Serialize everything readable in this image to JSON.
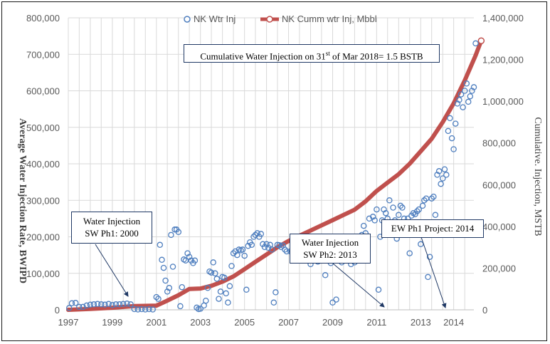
{
  "chart_data": {
    "type": "scatter",
    "legend": {
      "placement": "top",
      "entries": [
        {
          "label": "NK Wtr Inj",
          "marker": "circle-open",
          "color": "#4f7fbf"
        },
        {
          "label": "NK Cumm wtr Inj, Mbbl",
          "marker": "line-circle",
          "color": "#c0504d"
        }
      ]
    },
    "x_axis": {
      "type": "date",
      "range": [
        "1997-01-01",
        "2015-06-01"
      ],
      "tick_labels": [
        "1997",
        "1999",
        "2001",
        "2003",
        "2005",
        "2007",
        "2009",
        "2011",
        "2013",
        "2014"
      ],
      "tick_dates": [
        "1997-01-01",
        "1999-01-01",
        "2001-01-01",
        "2003-01-01",
        "2005-01-01",
        "2007-01-01",
        "2009-01-01",
        "2011-01-01",
        "2013-01-01",
        "2014-07-01"
      ]
    },
    "y_left": {
      "label": "Average Water Injection Rate, BWIPD",
      "range": [
        0,
        800000
      ],
      "tick_labels": [
        "0",
        "100,000",
        "200,000",
        "300,000",
        "400,000",
        "500,000",
        "600,000",
        "700,000",
        "800,000"
      ]
    },
    "y_right": {
      "label": "Cumulative. Injection, MSTB",
      "range": [
        0,
        1400000
      ],
      "tick_labels": [
        "0",
        "200,000",
        "400,000",
        "600,000",
        "800,000",
        "1,000,000",
        "1,200,000",
        "1,400,000"
      ]
    },
    "grid": true,
    "series": [
      {
        "name": "NK Wtr Inj",
        "axis": "left",
        "style": "scatter",
        "points": [
          [
            "1997-01-15",
            5000
          ],
          [
            "1997-03-01",
            18000
          ],
          [
            "1997-05-01",
            19000
          ],
          [
            "1997-07-01",
            8000
          ],
          [
            "1997-09-01",
            8000
          ],
          [
            "1997-11-01",
            12000
          ],
          [
            "1998-01-01",
            14000
          ],
          [
            "1998-03-01",
            15000
          ],
          [
            "1998-05-01",
            16000
          ],
          [
            "1998-07-01",
            15000
          ],
          [
            "1998-09-01",
            14000
          ],
          [
            "1998-11-01",
            16000
          ],
          [
            "1999-01-01",
            13000
          ],
          [
            "1999-03-01",
            15000
          ],
          [
            "1999-05-01",
            15000
          ],
          [
            "1999-07-01",
            16000
          ],
          [
            "1999-09-01",
            17000
          ],
          [
            "1999-11-01",
            15000
          ],
          [
            "2000-01-01",
            2000
          ],
          [
            "2000-03-01",
            1000
          ],
          [
            "2000-05-01",
            2000
          ],
          [
            "2000-07-01",
            1000
          ],
          [
            "2000-09-01",
            2000
          ],
          [
            "2000-11-01",
            1000
          ],
          [
            "2001-01-01",
            35000
          ],
          [
            "2001-02-01",
            30000
          ],
          [
            "2001-03-01",
            178000
          ],
          [
            "2001-04-01",
            137000
          ],
          [
            "2001-05-01",
            115000
          ],
          [
            "2001-06-01",
            80000
          ],
          [
            "2001-07-01",
            50000
          ],
          [
            "2001-08-01",
            60000
          ],
          [
            "2001-09-01",
            205000
          ],
          [
            "2001-10-01",
            118000
          ],
          [
            "2001-11-01",
            220000
          ],
          [
            "2001-12-01",
            220000
          ],
          [
            "2002-01-01",
            213000
          ],
          [
            "2002-02-01",
            10000
          ],
          [
            "2002-03-01",
            62000
          ],
          [
            "2002-04-01",
            138000
          ],
          [
            "2002-05-01",
            135000
          ],
          [
            "2002-06-01",
            155000
          ],
          [
            "2002-07-01",
            145000
          ],
          [
            "2002-08-01",
            135000
          ],
          [
            "2002-09-01",
            128000
          ],
          [
            "2002-10-01",
            135000
          ],
          [
            "2002-11-01",
            6000
          ],
          [
            "2002-12-01",
            2000
          ],
          [
            "2003-01-01",
            3000
          ],
          [
            "2003-03-01",
            12000
          ],
          [
            "2003-04-01",
            25000
          ],
          [
            "2003-05-01",
            60000
          ],
          [
            "2003-06-01",
            105000
          ],
          [
            "2003-07-01",
            102000
          ],
          [
            "2003-08-01",
            130000
          ],
          [
            "2003-09-01",
            100000
          ],
          [
            "2003-10-01",
            85000
          ],
          [
            "2003-11-01",
            30000
          ],
          [
            "2003-12-01",
            50000
          ],
          [
            "2004-01-01",
            90000
          ],
          [
            "2004-02-01",
            88000
          ],
          [
            "2004-03-01",
            45000
          ],
          [
            "2004-04-01",
            20000
          ],
          [
            "2004-05-01",
            65000
          ],
          [
            "2004-06-01",
            120000
          ],
          [
            "2004-07-01",
            155000
          ],
          [
            "2004-08-01",
            160000
          ],
          [
            "2004-09-01",
            150000
          ],
          [
            "2004-10-01",
            165000
          ],
          [
            "2004-11-01",
            163000
          ],
          [
            "2004-12-01",
            165000
          ],
          [
            "2005-01-01",
            148000
          ],
          [
            "2005-02-01",
            55000
          ],
          [
            "2005-03-01",
            175000
          ],
          [
            "2005-04-01",
            185000
          ],
          [
            "2005-05-01",
            178000
          ],
          [
            "2005-06-01",
            200000
          ],
          [
            "2005-07-01",
            205000
          ],
          [
            "2005-08-01",
            210000
          ],
          [
            "2005-09-01",
            200000
          ],
          [
            "2005-10-01",
            208000
          ],
          [
            "2005-11-01",
            180000
          ],
          [
            "2005-12-01",
            172000
          ],
          [
            "2006-01-01",
            180000
          ],
          [
            "2006-02-01",
            170000
          ],
          [
            "2006-03-01",
            178000
          ],
          [
            "2006-04-01",
            165000
          ],
          [
            "2006-05-01",
            20000
          ],
          [
            "2006-06-01",
            48000
          ],
          [
            "2006-07-01",
            178000
          ],
          [
            "2006-08-01",
            177000
          ],
          [
            "2006-09-01",
            172000
          ],
          [
            "2006-10-01",
            176000
          ],
          [
            "2006-11-01",
            165000
          ],
          [
            "2006-12-01",
            160000
          ],
          [
            "2007-02-01",
            160000
          ],
          [
            "2007-04-01",
            158000
          ],
          [
            "2007-07-01",
            165000
          ],
          [
            "2007-10-01",
            162000
          ],
          [
            "2008-01-01",
            125000
          ],
          [
            "2008-05-01",
            132000
          ],
          [
            "2008-09-01",
            95000
          ],
          [
            "2008-12-01",
            128000
          ],
          [
            "2009-01-01",
            20000
          ],
          [
            "2009-03-01",
            28000
          ],
          [
            "2009-06-01",
            130000
          ],
          [
            "2009-09-01",
            180000
          ],
          [
            "2009-11-01",
            125000
          ],
          [
            "2010-01-01",
            130000
          ],
          [
            "2010-03-01",
            150000
          ],
          [
            "2010-05-01",
            205000
          ],
          [
            "2010-06-01",
            230000
          ],
          [
            "2010-07-01",
            210000
          ],
          [
            "2010-09-01",
            250000
          ],
          [
            "2010-11-01",
            255000
          ],
          [
            "2010-12-01",
            245000
          ],
          [
            "2011-01-01",
            275000
          ],
          [
            "2011-02-01",
            55000
          ],
          [
            "2011-03-01",
            200000
          ],
          [
            "2011-04-01",
            245000
          ],
          [
            "2011-05-01",
            275000
          ],
          [
            "2011-06-01",
            265000
          ],
          [
            "2011-07-01",
            250000
          ],
          [
            "2011-08-01",
            300000
          ],
          [
            "2011-09-01",
            235000
          ],
          [
            "2011-10-01",
            280000
          ],
          [
            "2011-11-01",
            245000
          ],
          [
            "2011-12-01",
            195000
          ],
          [
            "2012-01-01",
            260000
          ],
          [
            "2012-02-01",
            285000
          ],
          [
            "2012-03-01",
            280000
          ],
          [
            "2012-04-01",
            250000
          ],
          [
            "2012-05-01",
            235000
          ],
          [
            "2012-06-01",
            250000
          ],
          [
            "2012-07-01",
            155000
          ],
          [
            "2012-08-01",
            258000
          ],
          [
            "2012-09-01",
            265000
          ],
          [
            "2012-10-01",
            262000
          ],
          [
            "2012-11-01",
            270000
          ],
          [
            "2012-12-01",
            275000
          ],
          [
            "2013-01-01",
            180000
          ],
          [
            "2013-02-01",
            285000
          ],
          [
            "2013-03-01",
            300000
          ],
          [
            "2013-04-01",
            305000
          ],
          [
            "2013-05-01",
            90000
          ],
          [
            "2013-06-01",
            145000
          ],
          [
            "2013-07-01",
            305000
          ],
          [
            "2013-08-01",
            310000
          ],
          [
            "2013-09-01",
            260000
          ],
          [
            "2013-10-01",
            370000
          ],
          [
            "2013-11-01",
            380000
          ],
          [
            "2013-12-01",
            345000
          ],
          [
            "2014-01-01",
            360000
          ],
          [
            "2014-02-01",
            385000
          ],
          [
            "2014-03-01",
            370000
          ],
          [
            "2014-04-01",
            490000
          ],
          [
            "2014-05-01",
            525000
          ],
          [
            "2014-06-01",
            470000
          ],
          [
            "2014-07-01",
            440000
          ],
          [
            "2014-08-01",
            510000
          ],
          [
            "2014-09-01",
            565000
          ],
          [
            "2014-10-01",
            575000
          ],
          [
            "2014-11-01",
            590000
          ],
          [
            "2014-12-01",
            555000
          ],
          [
            "2015-01-01",
            600000
          ],
          [
            "2015-02-01",
            620000
          ],
          [
            "2015-03-01",
            570000
          ],
          [
            "2015-04-01",
            585000
          ],
          [
            "2015-05-01",
            600000
          ],
          [
            "2015-06-01",
            610000
          ],
          [
            "2015-07-01",
            730000
          ],
          [
            "2015-08-01",
            730000
          ],
          [
            "2015-09-01",
            733000
          ]
        ]
      },
      {
        "name": "NK Cumm wtr Inj, Mbbl",
        "axis": "right",
        "style": "line",
        "points": [
          [
            "1997-01-01",
            0
          ],
          [
            "1998-01-01",
            4000
          ],
          [
            "1999-01-01",
            10000
          ],
          [
            "2000-01-01",
            18000
          ],
          [
            "2001-01-01",
            20000
          ],
          [
            "2001-06-01",
            40000
          ],
          [
            "2002-01-01",
            70000
          ],
          [
            "2002-07-01",
            100000
          ],
          [
            "2003-01-01",
            102000
          ],
          [
            "2003-07-01",
            115000
          ],
          [
            "2004-01-01",
            135000
          ],
          [
            "2004-07-01",
            160000
          ],
          [
            "2005-01-01",
            195000
          ],
          [
            "2005-07-01",
            230000
          ],
          [
            "2006-01-01",
            265000
          ],
          [
            "2006-07-01",
            300000
          ],
          [
            "2007-01-01",
            330000
          ],
          [
            "2007-07-01",
            355000
          ],
          [
            "2008-01-01",
            380000
          ],
          [
            "2008-07-01",
            405000
          ],
          [
            "2009-01-01",
            430000
          ],
          [
            "2009-07-01",
            455000
          ],
          [
            "2010-01-01",
            480000
          ],
          [
            "2010-07-01",
            520000
          ],
          [
            "2011-01-01",
            570000
          ],
          [
            "2011-07-01",
            610000
          ],
          [
            "2012-01-01",
            650000
          ],
          [
            "2012-07-01",
            700000
          ],
          [
            "2013-01-01",
            760000
          ],
          [
            "2013-07-01",
            820000
          ],
          [
            "2014-01-01",
            900000
          ],
          [
            "2014-07-01",
            990000
          ],
          [
            "2015-01-01",
            1100000
          ],
          [
            "2015-07-01",
            1220000
          ],
          [
            "2015-10-01",
            1290000
          ]
        ]
      }
    ],
    "annotations": [
      {
        "id": "cum-note",
        "text": "Cumulative Water Injection on 31st of  Mar 2018= 1.5 BSTB",
        "text_main": "Cumulative Water Injection on 31",
        "text_sup": "st",
        "text_tail": " of  Mar 2018= 1.5 BSTB"
      },
      {
        "id": "ph1",
        "lines": [
          "Water Injection",
          "SW Ph1: 2000"
        ]
      },
      {
        "id": "ph2",
        "lines": [
          "Water Injection",
          "SW Ph2: 2013"
        ]
      },
      {
        "id": "ew",
        "lines": [
          "EW Ph1 Project: 2014"
        ]
      }
    ]
  }
}
